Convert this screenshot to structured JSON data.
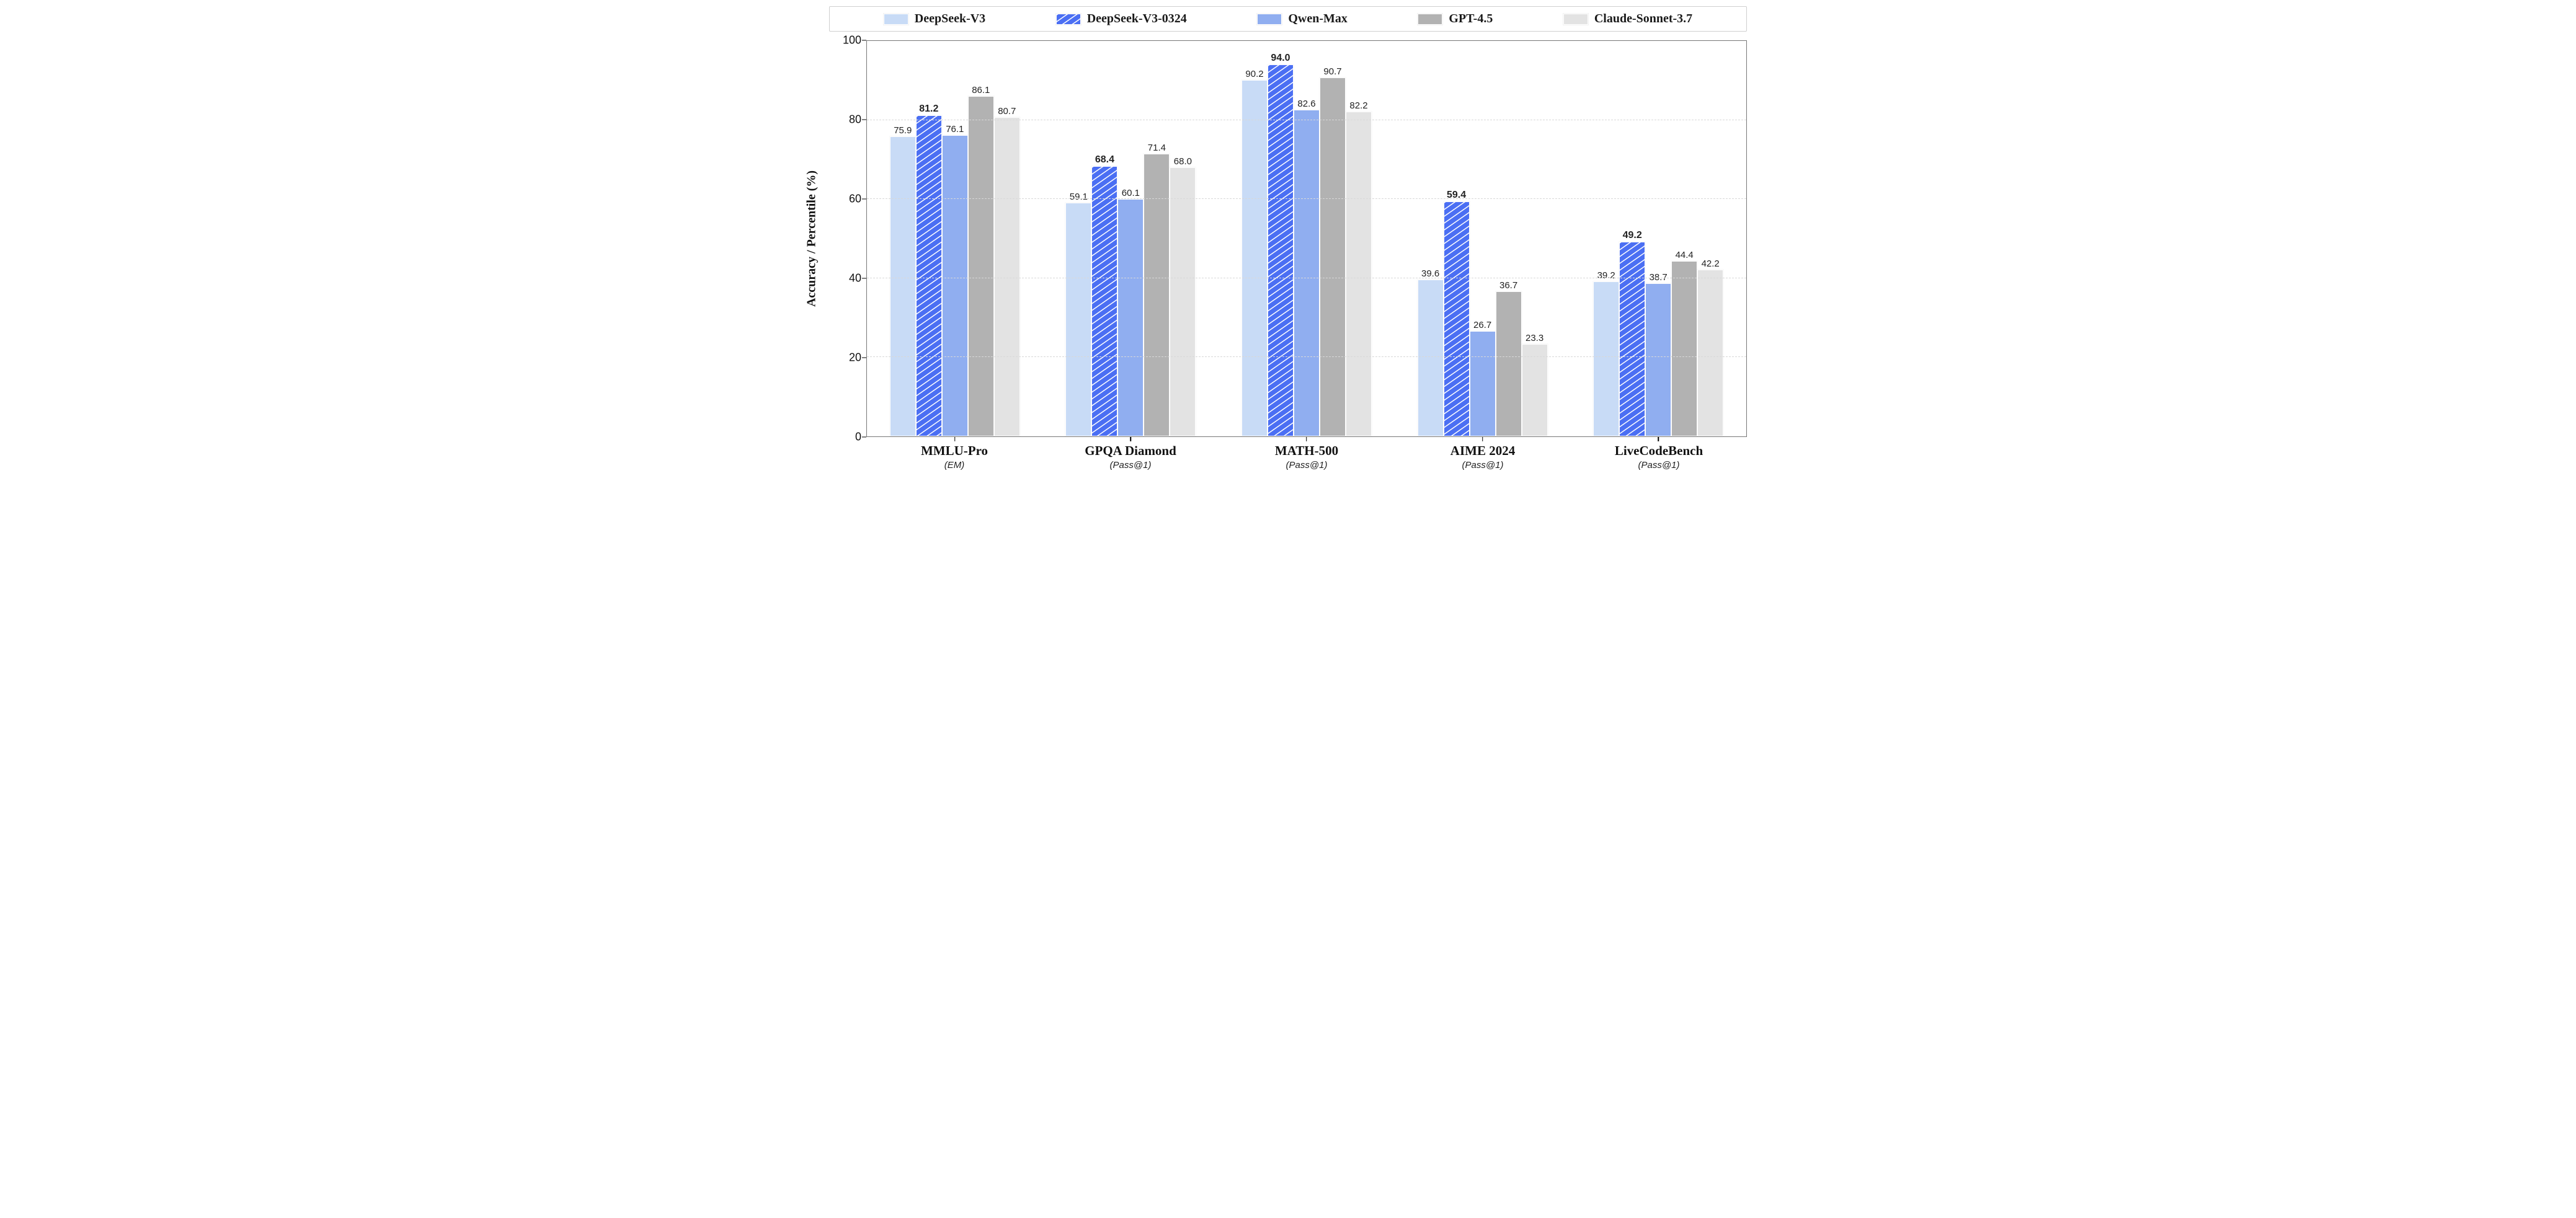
{
  "chart": {
    "type": "bar",
    "ylabel": "Accuracy / Percentile (%)",
    "ylim": [
      0,
      100
    ],
    "ytick_step": 20,
    "yticks": [
      0,
      20,
      40,
      60,
      80,
      100
    ],
    "background_color": "#ffffff",
    "grid_color": "#d8d8d8",
    "border_color": "#777777",
    "label_fontsize": 20,
    "tick_fontsize": 18,
    "value_fontsize": 15,
    "legend": {
      "border_color": "#cfcfcf",
      "swatch_w": 40,
      "swatch_h": 18
    },
    "series": [
      {
        "id": "ds3",
        "name": "DeepSeek-V3",
        "color": "#c8dbf6",
        "hatched": false
      },
      {
        "id": "ds3_0324",
        "name": "DeepSeek-V3-0324",
        "color": "#4b6ff3",
        "hatched": true,
        "hatch_color": "#ffffff",
        "emphasize": true
      },
      {
        "id": "qwen",
        "name": "Qwen-Max",
        "color": "#90aef0",
        "hatched": false
      },
      {
        "id": "gpt45",
        "name": "GPT-4.5",
        "color": "#b2b2b2",
        "hatched": false
      },
      {
        "id": "sonnet",
        "name": "Claude-Sonnet-3.7",
        "color": "#e3e3e3",
        "hatched": false
      }
    ],
    "categories": [
      {
        "name": "MMLU-Pro",
        "metric": "(EM)",
        "values": {
          "ds3": 75.9,
          "ds3_0324": 81.2,
          "qwen": 76.1,
          "gpt45": 86.1,
          "sonnet": 80.7
        }
      },
      {
        "name": "GPQA Diamond",
        "metric": "(Pass@1)",
        "values": {
          "ds3": 59.1,
          "ds3_0324": 68.4,
          "qwen": 60.1,
          "gpt45": 71.4,
          "sonnet": 68.0
        }
      },
      {
        "name": "MATH-500",
        "metric": "(Pass@1)",
        "values": {
          "ds3": 90.2,
          "ds3_0324": 94.0,
          "qwen": 82.6,
          "gpt45": 90.7,
          "sonnet": 82.2
        }
      },
      {
        "name": "AIME 2024",
        "metric": "(Pass@1)",
        "values": {
          "ds3": 39.6,
          "ds3_0324": 59.4,
          "qwen": 26.7,
          "gpt45": 36.7,
          "sonnet": 23.3
        }
      },
      {
        "name": "LiveCodeBench",
        "metric": "(Pass@1)",
        "values": {
          "ds3": 39.2,
          "ds3_0324": 49.2,
          "qwen": 38.7,
          "gpt45": 44.4,
          "sonnet": 42.2
        }
      }
    ]
  }
}
